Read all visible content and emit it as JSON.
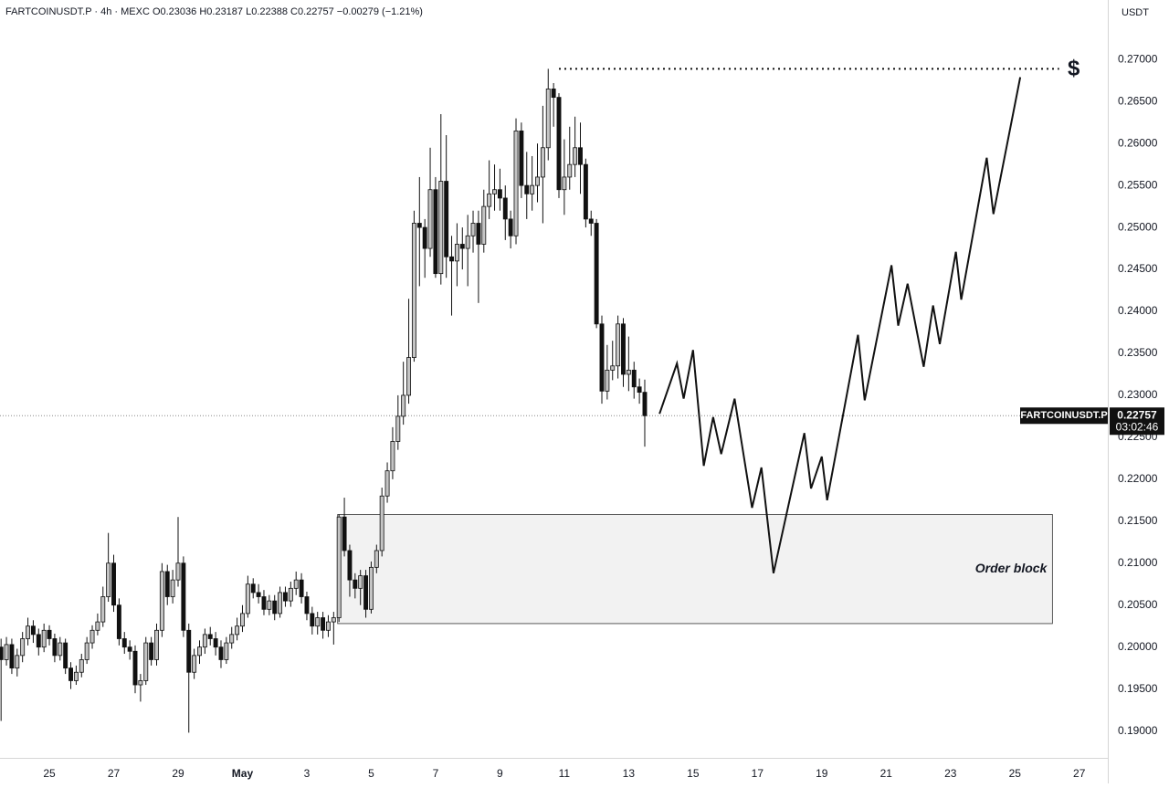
{
  "header": "FARTCOINUSDT.P · 4h · MEXC  O0.23036  H0.23187  L0.22388  C0.22757  −0.00279 (−1.21%)",
  "chart_data": {
    "type": "candlestick",
    "unit": "USDT",
    "up_color": "#c4c4c4",
    "down_color": "#111111",
    "grid": false,
    "x": [
      564,
      568,
      572,
      576,
      580,
      584,
      588,
      592,
      596,
      600,
      604,
      608,
      612,
      616,
      620,
      624,
      628,
      632,
      636,
      640,
      644,
      648,
      652,
      656,
      660,
      664,
      668,
      672,
      676,
      680,
      684,
      688,
      692,
      696,
      700,
      704,
      708,
      712,
      716,
      720,
      724,
      728,
      732,
      736,
      740,
      744,
      748,
      752,
      756,
      760,
      764,
      768,
      772,
      776,
      780,
      784,
      788,
      792,
      796,
      800,
      804,
      808,
      812,
      816,
      820,
      824,
      828,
      832,
      836,
      840,
      844,
      848,
      852,
      856,
      860,
      864,
      868,
      872,
      876,
      880,
      884,
      888,
      892,
      896,
      900,
      904,
      908,
      912,
      916,
      920,
      924,
      928,
      932,
      936,
      940,
      944,
      948,
      952,
      956,
      960,
      964,
      968,
      972,
      976,
      980,
      984,
      988,
      992,
      996,
      1000,
      1004,
      1008,
      1012,
      1016,
      1020,
      1024,
      1028,
      1032,
      1036,
      1040,
      1044
    ],
    "open": [
      0.2,
      0.1985,
      0.2003,
      0.1975,
      0.199,
      0.201,
      0.2025,
      0.2015,
      0.2,
      0.202,
      0.201,
      0.199,
      0.2005,
      0.1975,
      0.196,
      0.197,
      0.1985,
      0.2005,
      0.202,
      0.203,
      0.206,
      0.21,
      0.205,
      0.201,
      0.2,
      0.1995,
      0.1955,
      0.196,
      0.2005,
      0.1985,
      0.202,
      0.209,
      0.206,
      0.208,
      0.21,
      0.202,
      0.197,
      0.199,
      0.2,
      0.2015,
      0.201,
      0.2,
      0.1985,
      0.2005,
      0.2015,
      0.2025,
      0.204,
      0.2075,
      0.2065,
      0.206,
      0.2045,
      0.2055,
      0.204,
      0.2065,
      0.2055,
      0.207,
      0.208,
      0.206,
      0.204,
      0.2025,
      0.2035,
      0.202,
      0.203,
      0.2035,
      0.2155,
      0.2115,
      0.208,
      0.207,
      0.2085,
      0.2045,
      0.2095,
      0.2115,
      0.218,
      0.221,
      0.2245,
      0.2275,
      0.23,
      0.2345,
      0.2505,
      0.25,
      0.2475,
      0.2545,
      0.2445,
      0.2555,
      0.2465,
      0.246,
      0.248,
      0.2475,
      0.249,
      0.2505,
      0.248,
      0.2525,
      0.254,
      0.2545,
      0.2535,
      0.251,
      0.249,
      0.2615,
      0.255,
      0.254,
      0.255,
      0.256,
      0.2595,
      0.2665,
      0.2655,
      0.2545,
      0.256,
      0.2575,
      0.2595,
      0.2575,
      0.251,
      0.2505,
      0.2385,
      0.2305,
      0.233,
      0.2335,
      0.2385,
      0.2325,
      0.233,
      0.231,
      0.23036
    ],
    "high": [
      0.201,
      0.2012,
      0.201,
      0.1998,
      0.2018,
      0.2035,
      0.2032,
      0.2022,
      0.2028,
      0.2026,
      0.2016,
      0.2012,
      0.201,
      0.1982,
      0.1978,
      0.1992,
      0.2012,
      0.2026,
      0.204,
      0.2072,
      0.2136,
      0.211,
      0.2058,
      0.2018,
      0.2008,
      0.2002,
      0.1968,
      0.2012,
      0.2012,
      0.2028,
      0.21,
      0.2098,
      0.2092,
      0.2155,
      0.2108,
      0.2028,
      0.1998,
      0.2008,
      0.2022,
      0.2024,
      0.2018,
      0.2008,
      0.2012,
      0.2024,
      0.2035,
      0.205,
      0.2085,
      0.2082,
      0.2075,
      0.2068,
      0.2062,
      0.2062,
      0.2072,
      0.2072,
      0.2078,
      0.209,
      0.2088,
      0.2066,
      0.2048,
      0.2042,
      0.2042,
      0.2038,
      0.2042,
      0.2158,
      0.2178,
      0.2122,
      0.2088,
      0.2092,
      0.2092,
      0.2102,
      0.2122,
      0.219,
      0.222,
      0.2262,
      0.23,
      0.234,
      0.2415,
      0.252,
      0.256,
      0.251,
      0.2595,
      0.256,
      0.2635,
      0.261,
      0.249,
      0.2505,
      0.25,
      0.2515,
      0.252,
      0.252,
      0.2545,
      0.258,
      0.2575,
      0.257,
      0.255,
      0.252,
      0.263,
      0.2625,
      0.259,
      0.2585,
      0.26,
      0.2645,
      0.2689,
      0.2672,
      0.266,
      0.2605,
      0.262,
      0.2632,
      0.2625,
      0.2582,
      0.252,
      0.251,
      0.2395,
      0.236,
      0.2365,
      0.2395,
      0.2392,
      0.237,
      0.234,
      0.232,
      0.23187
    ],
    "low": [
      0.1912,
      0.1978,
      0.1968,
      0.1965,
      0.1982,
      0.2002,
      0.2005,
      0.199,
      0.1994,
      0.2002,
      0.1982,
      0.1984,
      0.1968,
      0.195,
      0.1955,
      0.1964,
      0.198,
      0.1998,
      0.2014,
      0.2024,
      0.2054,
      0.2042,
      0.2002,
      0.1992,
      0.1985,
      0.1945,
      0.1935,
      0.1955,
      0.1978,
      0.1978,
      0.2012,
      0.205,
      0.2052,
      0.2072,
      0.2012,
      0.1898,
      0.1962,
      0.198,
      0.1992,
      0.2002,
      0.199,
      0.1975,
      0.198,
      0.1998,
      0.2008,
      0.2018,
      0.2035,
      0.2058,
      0.2052,
      0.2038,
      0.2038,
      0.2032,
      0.2035,
      0.2048,
      0.2048,
      0.2062,
      0.2052,
      0.2032,
      0.2015,
      0.2015,
      0.201,
      0.2012,
      0.2003,
      0.203,
      0.2108,
      0.206,
      0.2058,
      0.205,
      0.2035,
      0.204,
      0.2088,
      0.2108,
      0.2172,
      0.22,
      0.2235,
      0.2265,
      0.229,
      0.234,
      0.243,
      0.244,
      0.2465,
      0.244,
      0.2432,
      0.244,
      0.2395,
      0.243,
      0.245,
      0.243,
      0.247,
      0.241,
      0.247,
      0.251,
      0.252,
      0.252,
      0.2485,
      0.2475,
      0.248,
      0.2535,
      0.251,
      0.252,
      0.253,
      0.2505,
      0.258,
      0.262,
      0.2535,
      0.2515,
      0.2545,
      0.256,
      0.254,
      0.25,
      0.249,
      0.238,
      0.229,
      0.2295,
      0.2318,
      0.232,
      0.231,
      0.2305,
      0.2296,
      0.229,
      0.22388
    ],
    "close": [
      0.1985,
      0.2003,
      0.1975,
      0.199,
      0.201,
      0.2025,
      0.2015,
      0.2,
      0.202,
      0.201,
      0.199,
      0.2005,
      0.1975,
      0.196,
      0.197,
      0.1985,
      0.2005,
      0.202,
      0.203,
      0.206,
      0.21,
      0.205,
      0.201,
      0.2,
      0.1995,
      0.1955,
      0.196,
      0.2005,
      0.1985,
      0.202,
      0.209,
      0.206,
      0.208,
      0.21,
      0.202,
      0.197,
      0.199,
      0.2,
      0.2015,
      0.201,
      0.2,
      0.1985,
      0.2005,
      0.2015,
      0.2025,
      0.204,
      0.2075,
      0.2065,
      0.206,
      0.2045,
      0.2055,
      0.204,
      0.2065,
      0.2055,
      0.207,
      0.208,
      0.206,
      0.204,
      0.2025,
      0.2035,
      0.202,
      0.203,
      0.2035,
      0.2155,
      0.2115,
      0.208,
      0.207,
      0.2085,
      0.2045,
      0.2095,
      0.2115,
      0.218,
      0.221,
      0.2245,
      0.2275,
      0.23,
      0.2345,
      0.2505,
      0.25,
      0.2475,
      0.2545,
      0.2445,
      0.2555,
      0.2465,
      0.246,
      0.248,
      0.2475,
      0.249,
      0.2505,
      0.248,
      0.2525,
      0.254,
      0.2545,
      0.2535,
      0.251,
      0.249,
      0.2615,
      0.255,
      0.254,
      0.255,
      0.256,
      0.2595,
      0.2665,
      0.2655,
      0.2545,
      0.256,
      0.2575,
      0.2595,
      0.2575,
      0.251,
      0.2505,
      0.2385,
      0.2305,
      0.233,
      0.2335,
      0.2385,
      0.2325,
      0.233,
      0.231,
      0.23036,
      0.22757
    ],
    "xlim": [
      563.2,
      1389.3
    ],
    "xticks": [
      {
        "value": 600,
        "label": "25"
      },
      {
        "value": 648,
        "label": "27"
      },
      {
        "value": 696,
        "label": "29"
      },
      {
        "value": 744,
        "label": "May"
      },
      {
        "value": 792,
        "label": "3"
      },
      {
        "value": 840,
        "label": "5"
      },
      {
        "value": 888,
        "label": "7"
      },
      {
        "value": 936,
        "label": "9"
      },
      {
        "value": 984,
        "label": "11"
      },
      {
        "value": 1032,
        "label": "13"
      },
      {
        "value": 1080,
        "label": "15"
      },
      {
        "value": 1128,
        "label": "17"
      },
      {
        "value": 1176,
        "label": "19"
      },
      {
        "value": 1224,
        "label": "21"
      },
      {
        "value": 1272,
        "label": "23"
      },
      {
        "value": 1320,
        "label": "25"
      },
      {
        "value": 1368,
        "label": "27"
      }
    ],
    "ylim": [
      0.1868,
      0.2771
    ],
    "yticks": [
      {
        "value": 0.19,
        "label": "0.19000"
      },
      {
        "value": 0.195,
        "label": "0.19500"
      },
      {
        "value": 0.2,
        "label": "0.20000"
      },
      {
        "value": 0.205,
        "label": "0.20500"
      },
      {
        "value": 0.21,
        "label": "0.21000"
      },
      {
        "value": 0.215,
        "label": "0.21500"
      },
      {
        "value": 0.22,
        "label": "0.22000"
      },
      {
        "value": 0.225,
        "label": "0.22500"
      },
      {
        "value": 0.23,
        "label": "0.23000"
      },
      {
        "value": 0.235,
        "label": "0.23500"
      },
      {
        "value": 0.24,
        "label": "0.24000"
      },
      {
        "value": 0.245,
        "label": "0.24500"
      },
      {
        "value": 0.25,
        "label": "0.25000"
      },
      {
        "value": 0.255,
        "label": "0.25500"
      },
      {
        "value": 0.26,
        "label": "0.26000"
      },
      {
        "value": 0.265,
        "label": "0.26500"
      },
      {
        "value": 0.27,
        "label": "0.27000"
      }
    ],
    "last_price": {
      "symbol": "FARTCOINUSDT.P",
      "value": 0.22757,
      "countdown": "03:02:46"
    },
    "order_block": {
      "label": "Order block",
      "x": [
        815,
        1348
      ],
      "range": [
        0.2028,
        0.2158
      ]
    },
    "target": {
      "label": "$",
      "value": 0.2689,
      "x": [
        980,
        1353
      ]
    },
    "projection": {
      "x": [
        1055,
        1068,
        1073,
        1080,
        1088,
        1095,
        1101,
        1111,
        1124,
        1131,
        1140,
        1163,
        1168,
        1176,
        1180,
        1203,
        1208,
        1228,
        1233,
        1240,
        1252,
        1259,
        1264,
        1276,
        1280,
        1299,
        1304,
        1324
      ],
      "values": [
        0.2278,
        0.2338,
        0.2296,
        0.2354,
        0.2216,
        0.2274,
        0.223,
        0.2296,
        0.2166,
        0.2214,
        0.2088,
        0.2255,
        0.2189,
        0.2227,
        0.2175,
        0.2372,
        0.2294,
        0.2455,
        0.2383,
        0.2433,
        0.2334,
        0.2407,
        0.2361,
        0.2471,
        0.2414,
        0.2583,
        0.2516,
        0.2679
      ]
    }
  }
}
